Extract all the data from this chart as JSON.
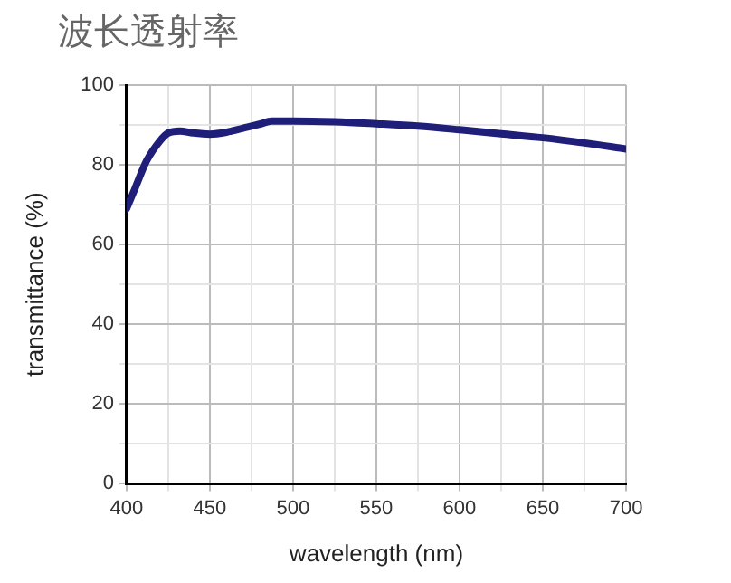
{
  "chart_data": {
    "type": "line",
    "title": "波长透射率",
    "xlabel": "wavelength (nm)",
    "ylabel": "transmittance (%)",
    "x": [
      400,
      405,
      412,
      420,
      425,
      432,
      440,
      450,
      460,
      470,
      480,
      487,
      500,
      525,
      550,
      575,
      600,
      625,
      650,
      675,
      700
    ],
    "series": [
      {
        "color": "#1f1f7a",
        "values": [
          69,
          74,
          81,
          86,
          88,
          88.5,
          88,
          87.7,
          88.2,
          89.2,
          90.2,
          91,
          91,
          90.8,
          90.3,
          89.7,
          88.8,
          87.8,
          86.8,
          85.5,
          84
        ]
      }
    ],
    "xlim": [
      400,
      700
    ],
    "xticks": [
      400,
      {
        "value": 425,
        "label": null
      },
      450,
      {
        "value": 475,
        "label": null
      },
      500,
      {
        "value": 525,
        "label": null
      },
      550,
      {
        "value": 575,
        "label": null
      },
      600,
      {
        "value": 625,
        "label": null
      },
      650,
      {
        "value": 675,
        "label": null
      },
      700
    ],
    "ylim": [
      0,
      100
    ],
    "yticks": [
      0,
      {
        "value": 10,
        "label": null
      },
      20,
      {
        "value": 30,
        "label": null
      },
      40,
      {
        "value": 50,
        "label": null
      },
      60,
      {
        "value": 70,
        "label": null
      },
      80,
      {
        "value": 90,
        "label": null
      },
      100
    ],
    "grid": true,
    "legend": false,
    "marker": "none",
    "line_style": "solid"
  }
}
